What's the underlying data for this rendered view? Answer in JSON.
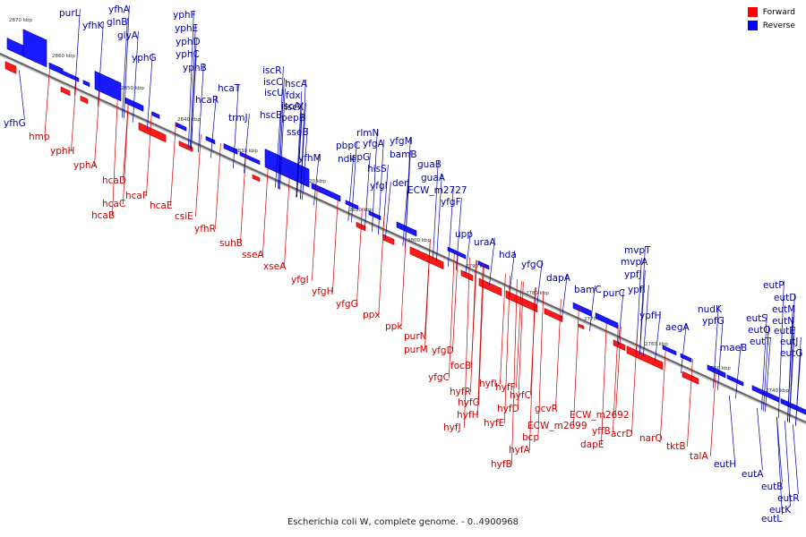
{
  "caption": "Escherichia coli W, complete genome. - 0..4900968",
  "legend": [
    {
      "label": "Forward",
      "color": "#ff0000"
    },
    {
      "label": "Reverse",
      "color": "#0000ff"
    }
  ],
  "colors": {
    "forward_label": "#cc0000",
    "reverse_label": "#0000aa",
    "backbone": "#666666"
  },
  "ticks": [
    "2870 kbp",
    "2860 kbp",
    "2850 kbp",
    "2840 kbp",
    "2830 kbp",
    "2820 kbp",
    "2810 kbp",
    "2800 kbp",
    "2790 kbp",
    "2780 kbp",
    "2770 kbp",
    "2760 kbp",
    "2750 kbp",
    "2740 kbp"
  ],
  "reverse_genes": [
    "purL",
    "yfhK",
    "yfhA",
    "glnB",
    "glyA",
    "yphG",
    "yphF",
    "yphE",
    "yphD",
    "yphC",
    "yphB",
    "hcaR",
    "hcaT",
    "trmJ",
    "iscR",
    "iscC",
    "iscU",
    "hscA",
    "fdx",
    "iscA",
    "iscX",
    "hscB",
    "pepB",
    "sseB",
    "yfhM",
    "pbpC",
    "ndk",
    "rlmN",
    "yfgA",
    "ispG",
    "yfgM",
    "hisS",
    "bamB",
    "der",
    "yfgI",
    "guaB",
    "guaA",
    "ECW_m2727",
    "yfgF",
    "upp",
    "uraA",
    "hda",
    "yfgO",
    "dapA",
    "bamC",
    "purC",
    "mvpT",
    "mvpA",
    "ypfJ",
    "ypfI",
    "ypfH",
    "aegA",
    "nudK",
    "ypfG",
    "maeB",
    "eutS",
    "eutQ",
    "eutT",
    "eutP",
    "eutD",
    "eutM",
    "eutN",
    "eutE",
    "eutJ",
    "eutG",
    "yfhG",
    "eutH",
    "eutA",
    "eutB",
    "eutR",
    "eutK",
    "eutL"
  ],
  "forward_genes": [
    "hmp",
    "yphH",
    "yphA",
    "hcaD",
    "hcaF",
    "hcaC",
    "hcaE",
    "hcaB",
    "csiE",
    "yfhR",
    "suhB",
    "sseA",
    "xseA",
    "yfgI",
    "yfgH",
    "yfgG",
    "ppx",
    "ppk",
    "purN",
    "purM",
    "yfgD",
    "focB",
    "yfgC",
    "hyfI",
    "hyfR",
    "hyfF",
    "hyfG",
    "hyfC",
    "hyfH",
    "hyfD",
    "hyfJ",
    "hyfE",
    "gcvR",
    "hyfA",
    "ECW_m2699",
    "bcp",
    "hyfB",
    "ECW_m2692",
    "yffB",
    "acrD",
    "dapE",
    "narQ",
    "tktB",
    "talA"
  ]
}
